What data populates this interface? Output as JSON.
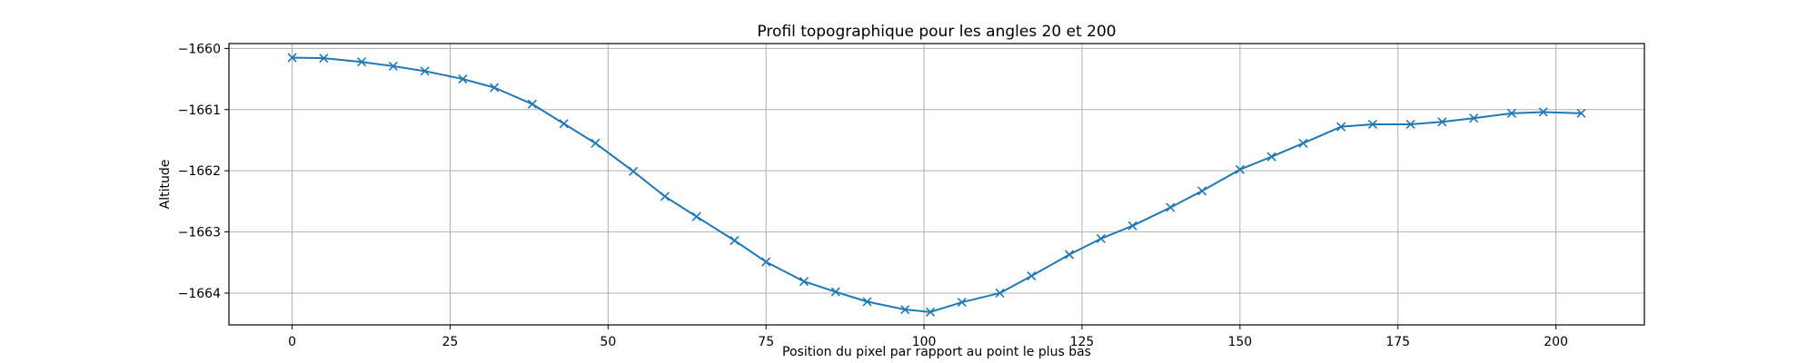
{
  "chart_data": {
    "type": "line",
    "title": "Profil topographique pour les angles 20 et 200",
    "xlabel": "Position du pixel par rapport au point le plus bas",
    "ylabel": "Altitude",
    "xlim": [
      -10,
      214
    ],
    "ylim": [
      -1664.52,
      -1659.92
    ],
    "grid": true,
    "marker": "x",
    "color": "#1f77b4",
    "x_ticks": [
      0,
      25,
      50,
      75,
      100,
      125,
      150,
      175,
      200
    ],
    "x_tick_labels": [
      "0",
      "25",
      "50",
      "75",
      "100",
      "125",
      "150",
      "175",
      "200"
    ],
    "y_ticks": [
      -1660,
      -1661,
      -1662,
      -1663,
      -1664
    ],
    "y_tick_labels": [
      "−1660",
      "−1661",
      "−1662",
      "−1663",
      "−1664"
    ],
    "series": [
      {
        "x": [
          0,
          5,
          11,
          16,
          21,
          27,
          32,
          38,
          43,
          48,
          54,
          59,
          64,
          70,
          75,
          81,
          86,
          91,
          97,
          101,
          106,
          112,
          117,
          123,
          128,
          133,
          139,
          144,
          150,
          155,
          160,
          166,
          171,
          177,
          182,
          187,
          193,
          198,
          204
        ],
        "values": [
          -1660.15,
          -1660.16,
          -1660.22,
          -1660.29,
          -1660.37,
          -1660.5,
          -1660.64,
          -1660.91,
          -1661.23,
          -1661.55,
          -1662.01,
          -1662.42,
          -1662.75,
          -1663.14,
          -1663.49,
          -1663.81,
          -1663.98,
          -1664.14,
          -1664.27,
          -1664.31,
          -1664.15,
          -1664.0,
          -1663.72,
          -1663.37,
          -1663.11,
          -1662.9,
          -1662.6,
          -1662.33,
          -1661.98,
          -1661.77,
          -1661.55,
          -1661.28,
          -1661.24,
          -1661.24,
          -1661.2,
          -1661.14,
          -1661.06,
          -1661.04,
          -1661.06
        ]
      }
    ]
  }
}
